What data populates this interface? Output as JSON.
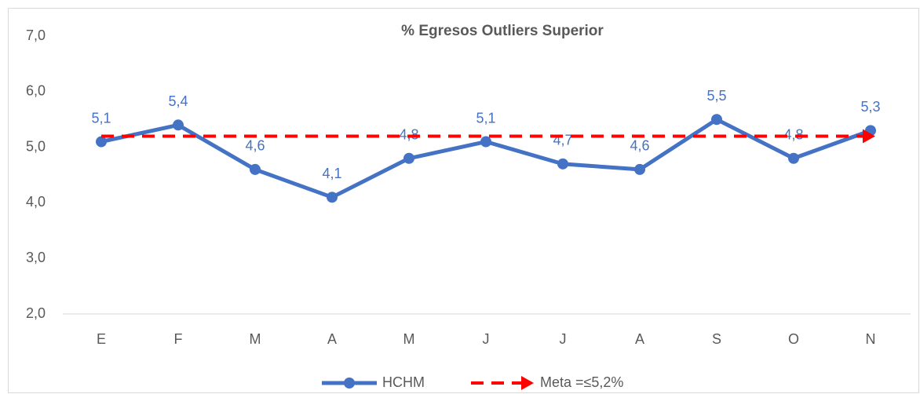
{
  "chart_data": {
    "type": "line",
    "title": "% Egresos Outliers Superior",
    "categories": [
      "E",
      "F",
      "M",
      "A",
      "M",
      "J",
      "J",
      "A",
      "S",
      "O",
      "N"
    ],
    "series": [
      {
        "name": "HCHM",
        "color": "#4472c4",
        "line_style": "solid",
        "marker": "circle",
        "values": [
          5.1,
          5.4,
          4.6,
          4.1,
          4.8,
          5.1,
          4.7,
          4.6,
          5.5,
          4.8,
          5.3
        ],
        "value_labels": [
          "5,1",
          "5,4",
          "4,6",
          "4,1",
          "4,8",
          "5,1",
          "4,7",
          "4,6",
          "5,5",
          "4,8",
          "5,3"
        ]
      },
      {
        "name": "Meta =≤5,2%",
        "color": "#ff0000",
        "line_style": "dashed",
        "marker": "arrow",
        "values": [
          5.2,
          5.2,
          5.2,
          5.2,
          5.2,
          5.2,
          5.2,
          5.2,
          5.2,
          5.2,
          5.2
        ]
      }
    ],
    "ylim": [
      2,
      7
    ],
    "yticks": [
      {
        "value": 2,
        "label": "2,0"
      },
      {
        "value": 3,
        "label": "3,0"
      },
      {
        "value": 4,
        "label": "4,0"
      },
      {
        "value": 5,
        "label": "5,0"
      },
      {
        "value": 6,
        "label": "6,0"
      },
      {
        "value": 7,
        "label": "7,0"
      }
    ],
    "grid": false,
    "legend": "bottom"
  }
}
